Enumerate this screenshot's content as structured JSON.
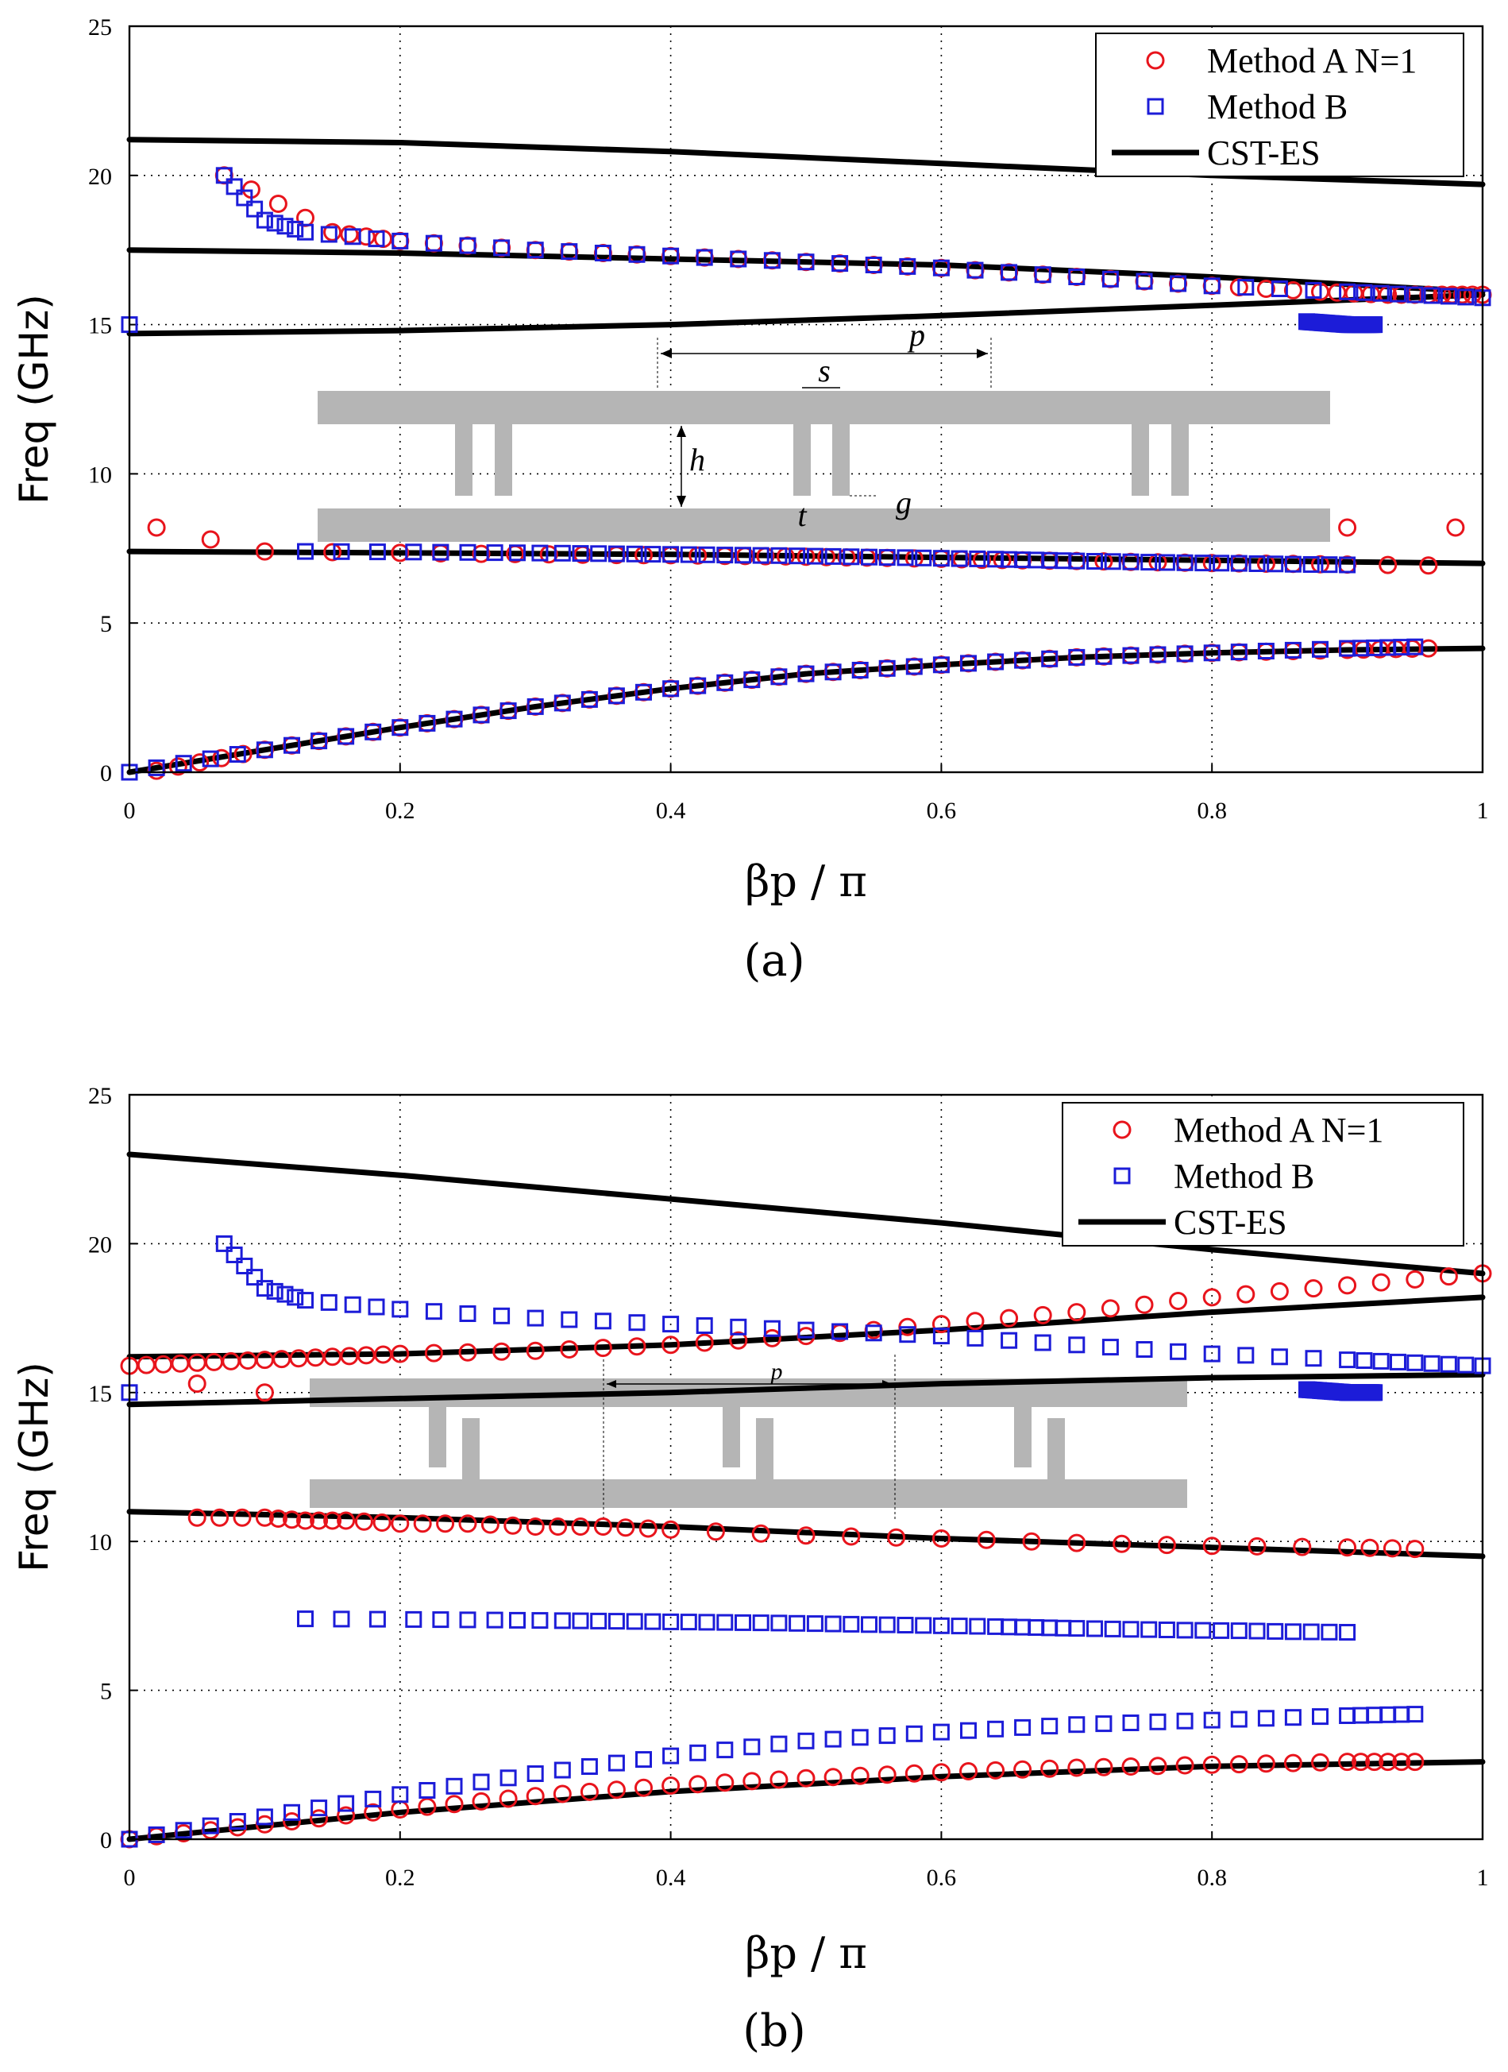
{
  "chart_data": [
    {
      "id": "a",
      "type": "scatter",
      "caption": "(a)",
      "caption_letter": "a",
      "xlabel": "βp / π",
      "ylabel": "Freq (GHz)",
      "xlim": [
        0,
        1
      ],
      "ylim": [
        0,
        25
      ],
      "xticks": [
        "0",
        "0.2",
        "0.4",
        "0.6",
        "0.8",
        "1"
      ],
      "yticks": [
        "0",
        "5",
        "10",
        "15",
        "20",
        "25"
      ],
      "grid": true,
      "legend_position": "top-right",
      "legend": [
        {
          "name": "Method A N=1",
          "marker": "circle",
          "color": "#e8141c"
        },
        {
          "name": "Method B",
          "marker": "square",
          "color": "#1c1cd8"
        },
        {
          "name": "CST-ES",
          "marker": "line",
          "color": "#000000"
        }
      ],
      "inset_labels": {
        "p": "p",
        "s": "s",
        "h": "h",
        "t": "t",
        "g": "g"
      },
      "cst_es": [
        {
          "x": [
            0,
            0.1,
            0.2,
            0.3,
            0.4,
            0.5,
            0.6,
            0.7,
            0.8,
            0.9,
            1.0
          ],
          "y": [
            0,
            0.75,
            1.5,
            2.2,
            2.8,
            3.3,
            3.6,
            3.85,
            4.0,
            4.1,
            4.15
          ]
        },
        {
          "x": [
            0,
            0.2,
            0.4,
            0.6,
            0.8,
            1.0
          ],
          "y": [
            7.4,
            7.35,
            7.3,
            7.2,
            7.1,
            7.0
          ]
        },
        {
          "x": [
            0,
            0.2,
            0.4,
            0.6,
            0.8,
            1.0
          ],
          "y": [
            14.7,
            14.8,
            15.0,
            15.3,
            15.65,
            16.0
          ]
        },
        {
          "x": [
            0,
            0.2,
            0.4,
            0.6,
            0.8,
            1.0
          ],
          "y": [
            17.5,
            17.4,
            17.2,
            17.0,
            16.6,
            16.1
          ]
        },
        {
          "x": [
            0,
            0.2,
            0.4,
            0.6,
            0.8,
            1.0
          ],
          "y": [
            21.2,
            21.1,
            20.8,
            20.4,
            20.0,
            19.7
          ]
        }
      ],
      "method_a": [
        {
          "x": [
            0.02,
            0.1,
            0.2,
            0.3,
            0.4,
            0.5,
            0.6,
            0.7,
            0.8,
            0.9,
            0.96
          ],
          "y": [
            0.05,
            0.75,
            1.5,
            2.2,
            2.8,
            3.3,
            3.6,
            3.85,
            4.0,
            4.1,
            4.15
          ]
        },
        {
          "x": [
            0.02,
            0.1,
            0.2,
            0.26,
            0.31,
            0.36,
            0.4,
            0.44,
            0.47,
            0.5,
            0.53,
            0.56,
            0.6,
            0.63,
            0.66,
            0.7,
            0.74,
            0.78,
            0.82,
            0.86,
            0.9,
            0.96
          ],
          "y": [
            8.2,
            7.4,
            7.35,
            7.32,
            7.3,
            7.28,
            7.27,
            7.25,
            7.24,
            7.22,
            7.2,
            7.18,
            7.15,
            7.12,
            7.1,
            7.08,
            7.05,
            7.02,
            7.0,
            6.98,
            6.96,
            6.93
          ]
        },
        {
          "x": [
            0.07,
            0.15,
            0.2,
            0.3,
            0.4,
            0.5,
            0.6,
            0.7,
            0.8,
            0.88,
            0.93,
            0.97,
            1.0
          ],
          "y": [
            20.0,
            18.1,
            17.8,
            17.5,
            17.3,
            17.1,
            16.9,
            16.6,
            16.3,
            16.1,
            16.0,
            16.0,
            16.0
          ]
        },
        {
          "x": [
            0.9
          ],
          "y": [
            8.2
          ]
        },
        {
          "x": [
            0.98
          ],
          "y": [
            8.2
          ]
        }
      ],
      "method_b": [
        {
          "x": [
            0,
            0.1,
            0.2,
            0.3,
            0.4,
            0.5,
            0.6,
            0.7,
            0.8,
            0.9,
            0.95
          ],
          "y": [
            0,
            0.75,
            1.5,
            2.2,
            2.8,
            3.3,
            3.6,
            3.85,
            4.0,
            4.15,
            4.2
          ]
        },
        {
          "x": [
            0.13,
            0.21,
            0.27,
            0.32,
            0.36,
            0.4,
            0.44,
            0.48,
            0.52,
            0.56,
            0.6,
            0.64,
            0.67,
            0.7,
            0.74,
            0.78,
            0.82,
            0.86,
            0.9
          ],
          "y": [
            7.4,
            7.38,
            7.36,
            7.34,
            7.32,
            7.3,
            7.28,
            7.26,
            7.23,
            7.2,
            7.17,
            7.14,
            7.11,
            7.08,
            7.05,
            7.02,
            7.0,
            6.97,
            6.95
          ]
        },
        {
          "x": [
            0.07,
            0.1,
            0.13,
            0.2,
            0.3,
            0.4,
            0.5,
            0.6,
            0.7,
            0.8,
            0.9,
            0.95,
            1.0
          ],
          "y": [
            20.0,
            18.5,
            18.1,
            17.8,
            17.5,
            17.3,
            17.1,
            16.9,
            16.6,
            16.3,
            16.1,
            16.0,
            15.9
          ]
        },
        {
          "x": [
            0
          ],
          "y": [
            15.0
          ]
        },
        {
          "x": [
            0.87,
            0.9,
            0.92
          ],
          "y": [
            15.1,
            15.0,
            15.0
          ]
        }
      ]
    },
    {
      "id": "b",
      "type": "scatter",
      "caption": "(b)",
      "caption_letter": "b",
      "xlabel": "βp / π",
      "ylabel": "Freq (GHz)",
      "xlim": [
        0,
        1
      ],
      "ylim": [
        0,
        25
      ],
      "xticks": [
        "0",
        "0.2",
        "0.4",
        "0.6",
        "0.8",
        "1"
      ],
      "yticks": [
        "0",
        "5",
        "10",
        "15",
        "20",
        "25"
      ],
      "grid": true,
      "legend_position": "top-right",
      "legend": [
        {
          "name": "Method A N=1",
          "marker": "circle",
          "color": "#e8141c"
        },
        {
          "name": "Method B",
          "marker": "square",
          "color": "#1c1cd8"
        },
        {
          "name": "CST-ES",
          "marker": "line",
          "color": "#000000"
        }
      ],
      "inset_labels": {
        "p": "p"
      },
      "cst_es": [
        {
          "x": [
            0,
            0.2,
            0.4,
            0.6,
            0.8,
            1.0
          ],
          "y": [
            0,
            0.9,
            1.6,
            2.1,
            2.45,
            2.6
          ]
        },
        {
          "x": [
            0,
            0.2,
            0.4,
            0.6,
            0.8,
            1.0
          ],
          "y": [
            11.0,
            10.8,
            10.5,
            10.1,
            9.8,
            9.5
          ]
        },
        {
          "x": [
            0,
            0.2,
            0.4,
            0.6,
            0.8,
            1.0
          ],
          "y": [
            14.6,
            14.8,
            15.0,
            15.3,
            15.5,
            15.6
          ]
        },
        {
          "x": [
            0,
            0.2,
            0.4,
            0.6,
            0.8,
            1.0
          ],
          "y": [
            16.2,
            16.3,
            16.6,
            17.1,
            17.7,
            18.2
          ]
        },
        {
          "x": [
            0,
            0.2,
            0.4,
            0.6,
            0.8,
            1.0
          ],
          "y": [
            23.0,
            22.3,
            21.5,
            20.7,
            19.8,
            19.0
          ]
        }
      ],
      "method_a": [
        {
          "x": [
            0,
            0.1,
            0.2,
            0.3,
            0.4,
            0.5,
            0.6,
            0.7,
            0.8,
            0.9,
            0.95
          ],
          "y": [
            0,
            0.5,
            1.0,
            1.45,
            1.8,
            2.05,
            2.25,
            2.4,
            2.5,
            2.6,
            2.6
          ]
        },
        {
          "x": [
            0.05,
            0.1,
            0.13,
            0.16,
            0.2,
            0.25,
            0.3,
            0.35,
            0.4,
            0.5,
            0.6,
            0.7,
            0.8,
            0.9,
            0.95
          ],
          "y": [
            10.8,
            10.8,
            10.7,
            10.7,
            10.6,
            10.6,
            10.5,
            10.5,
            10.4,
            10.2,
            10.1,
            9.95,
            9.85,
            9.8,
            9.75
          ]
        },
        {
          "x": [
            0,
            0.05,
            0.1,
            0.15,
            0.2,
            0.3,
            0.4,
            0.5,
            0.6,
            0.7,
            0.8,
            0.9,
            1.0
          ],
          "y": [
            15.9,
            16.0,
            16.1,
            16.2,
            16.3,
            16.4,
            16.6,
            16.9,
            17.3,
            17.7,
            18.2,
            18.6,
            19.0
          ]
        },
        {
          "x": [
            0.05,
            0.1
          ],
          "y": [
            15.3,
            15.0
          ]
        }
      ],
      "method_b": [
        {
          "x": [
            0,
            0.1,
            0.2,
            0.3,
            0.4,
            0.5,
            0.6,
            0.7,
            0.8,
            0.9,
            0.95
          ],
          "y": [
            0,
            0.75,
            1.5,
            2.2,
            2.8,
            3.3,
            3.6,
            3.85,
            4.0,
            4.15,
            4.2
          ]
        },
        {
          "x": [
            0.13,
            0.21,
            0.27,
            0.32,
            0.36,
            0.4,
            0.44,
            0.48,
            0.52,
            0.56,
            0.6,
            0.64,
            0.67,
            0.7,
            0.74,
            0.78,
            0.82,
            0.86,
            0.9
          ],
          "y": [
            7.4,
            7.38,
            7.36,
            7.34,
            7.32,
            7.3,
            7.28,
            7.26,
            7.23,
            7.2,
            7.17,
            7.14,
            7.11,
            7.08,
            7.05,
            7.02,
            7.0,
            6.97,
            6.95
          ]
        },
        {
          "x": [
            0.07,
            0.1,
            0.13,
            0.2,
            0.3,
            0.4,
            0.5,
            0.6,
            0.7,
            0.8,
            0.9,
            0.95,
            1.0
          ],
          "y": [
            20.0,
            18.5,
            18.1,
            17.8,
            17.5,
            17.3,
            17.1,
            16.9,
            16.6,
            16.3,
            16.1,
            16.0,
            15.9
          ]
        },
        {
          "x": [
            0
          ],
          "y": [
            15.0
          ]
        },
        {
          "x": [
            0.87,
            0.9,
            0.92
          ],
          "y": [
            15.1,
            15.0,
            15.0
          ]
        }
      ]
    }
  ]
}
